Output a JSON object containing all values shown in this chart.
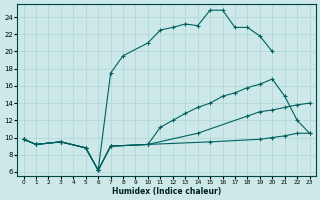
{
  "xlabel": "Humidex (Indice chaleur)",
  "xlim": [
    -0.5,
    23.5
  ],
  "ylim": [
    5.5,
    25.5
  ],
  "xticks": [
    0,
    1,
    2,
    3,
    4,
    5,
    6,
    7,
    8,
    9,
    10,
    11,
    12,
    13,
    14,
    15,
    16,
    17,
    18,
    19,
    20,
    21,
    22,
    23
  ],
  "yticks": [
    6,
    8,
    10,
    12,
    14,
    16,
    18,
    20,
    22,
    24
  ],
  "bg_color": "#cce8e8",
  "grid_color": "#b0d4d4",
  "line_color": "#006060",
  "lines": [
    {
      "x": [
        0,
        1,
        3,
        5,
        6,
        7,
        8,
        10,
        11,
        12,
        13,
        14,
        15,
        16,
        17,
        18,
        19,
        20
      ],
      "y": [
        9.8,
        9.2,
        9.5,
        8.8,
        6.2,
        17.5,
        19.5,
        21.0,
        22.5,
        22.8,
        23.2,
        23.0,
        24.8,
        24.8,
        22.8,
        22.8,
        21.8,
        20.0
      ]
    },
    {
      "x": [
        0,
        1,
        3,
        5,
        6,
        7,
        10,
        11,
        12,
        13,
        14,
        15,
        16,
        17,
        18,
        19,
        20,
        21,
        22,
        23
      ],
      "y": [
        9.8,
        9.2,
        9.5,
        8.8,
        6.2,
        9.0,
        9.2,
        11.2,
        12.0,
        12.8,
        13.5,
        14.0,
        14.8,
        15.2,
        15.8,
        16.2,
        16.8,
        14.8,
        12.0,
        10.5
      ]
    },
    {
      "x": [
        0,
        1,
        3,
        5,
        6,
        7,
        10,
        14,
        18,
        19,
        20,
        21,
        22,
        23
      ],
      "y": [
        9.8,
        9.2,
        9.5,
        8.8,
        6.2,
        9.0,
        9.2,
        10.5,
        12.5,
        13.0,
        13.2,
        13.5,
        13.8,
        14.0
      ]
    },
    {
      "x": [
        0,
        1,
        3,
        5,
        6,
        7,
        10,
        15,
        19,
        20,
        21,
        22,
        23
      ],
      "y": [
        9.8,
        9.2,
        9.5,
        8.8,
        6.2,
        9.0,
        9.2,
        9.5,
        9.8,
        10.0,
        10.2,
        10.5,
        10.5
      ]
    }
  ]
}
